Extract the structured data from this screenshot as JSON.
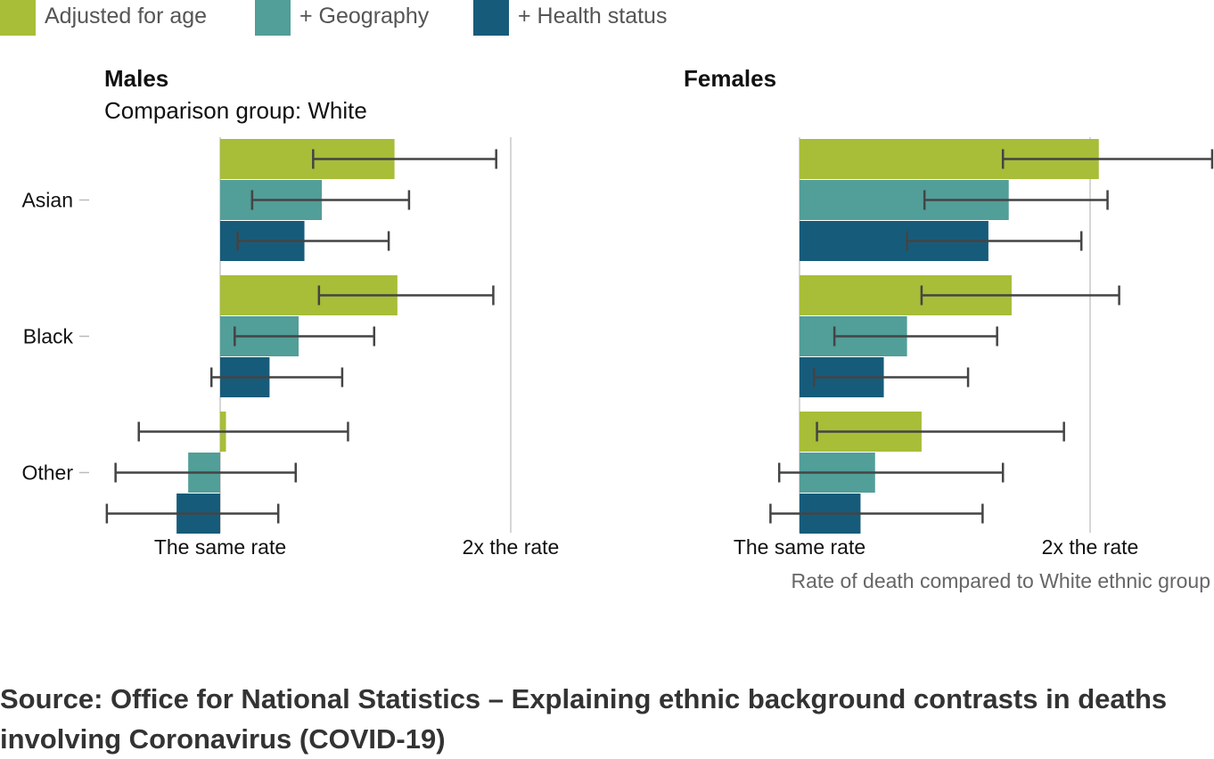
{
  "chart_data": {
    "type": "bar",
    "orientation": "horizontal",
    "title": "",
    "subtitle": "Comparison group: White",
    "xlabel": "Rate of death compared to White ethnic group",
    "x_ticks": [
      {
        "value": 1,
        "label": "The same rate"
      },
      {
        "value": 2,
        "label": "2x the rate"
      }
    ],
    "xlim": [
      0.6,
      2.4
    ],
    "grid": true,
    "legend_position": "top-left",
    "categories": [
      "Asian",
      "Black",
      "Other"
    ],
    "series": [
      {
        "name": "Adjusted for age",
        "color": "#a8bd38"
      },
      {
        "name": "+ Geography",
        "color": "#529e98"
      },
      {
        "name": "+ Health status",
        "color": "#175b7a"
      }
    ],
    "panels": [
      {
        "title": "Males",
        "values": [
          [
            1.6,
            1.35,
            1.29
          ],
          [
            1.61,
            1.27,
            1.17
          ],
          [
            1.02,
            0.89,
            0.85
          ]
        ],
        "ci_low": [
          [
            1.32,
            1.11,
            1.06
          ],
          [
            1.34,
            1.05,
            0.97
          ],
          [
            0.72,
            0.64,
            0.61
          ]
        ],
        "ci_high": [
          [
            1.95,
            1.65,
            1.58
          ],
          [
            1.94,
            1.53,
            1.42
          ],
          [
            1.44,
            1.26,
            1.2
          ]
        ]
      },
      {
        "title": "Females",
        "values": [
          [
            2.03,
            1.72,
            1.65
          ],
          [
            1.73,
            1.37,
            1.29
          ],
          [
            1.42,
            1.26,
            1.21
          ]
        ],
        "ci_low": [
          [
            1.7,
            1.43,
            1.37
          ],
          [
            1.42,
            1.12,
            1.05
          ],
          [
            1.06,
            0.93,
            0.9
          ]
        ],
        "ci_high": [
          [
            2.42,
            2.06,
            1.97
          ],
          [
            2.1,
            1.68,
            1.58
          ],
          [
            1.91,
            1.7,
            1.63
          ]
        ]
      }
    ]
  },
  "source": "Source: Office for National Statistics – Explaining ethnic background contrasts in deaths involving Coronavirus (COVID-19)"
}
